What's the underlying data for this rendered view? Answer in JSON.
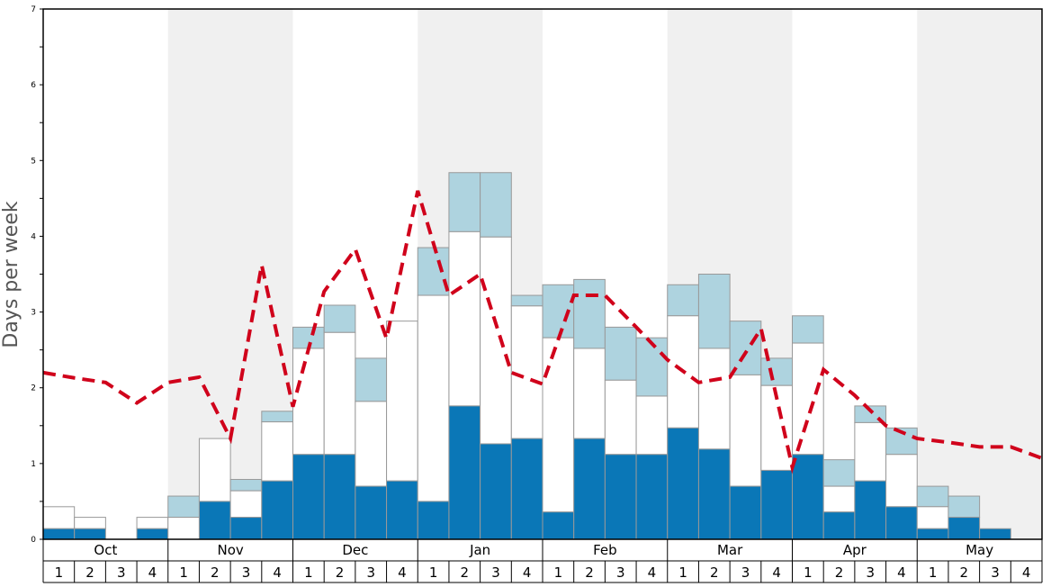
{
  "chart_data": {
    "type": "bar",
    "title": "",
    "ylabel": "Days per week",
    "xlabel": "",
    "ylim": [
      0,
      7
    ],
    "yticks": [
      "0",
      "1",
      "2",
      "3",
      "4",
      "5",
      "6",
      "7"
    ],
    "months": [
      "Oct",
      "Nov",
      "Dec",
      "Jan",
      "Feb",
      "Mar",
      "Apr",
      "May"
    ],
    "weeks_per_month": [
      "1",
      "2",
      "3",
      "4"
    ],
    "colors": {
      "dark": "#0a77b7",
      "middle": "#ffffff",
      "light": "#aed3df",
      "line": "#d0021b",
      "shade": "#f0f0f0"
    },
    "stack_tops": {
      "dark": [
        0.14,
        0.14,
        0,
        0.14,
        0,
        0.5,
        0.29,
        0.77,
        1.12,
        1.12,
        0.7,
        0.77,
        0.5,
        1.76,
        1.26,
        1.33,
        0.36,
        1.33,
        1.12,
        1.12,
        1.47,
        1.19,
        0.7,
        0.91,
        1.12,
        0.36,
        0.77,
        0.43,
        0.14,
        0.29,
        0.14,
        0
      ],
      "middle": [
        0.43,
        0.29,
        0,
        0.29,
        0.29,
        1.33,
        0.64,
        1.55,
        2.52,
        2.73,
        1.82,
        2.88,
        3.22,
        4.06,
        3.99,
        3.08,
        2.66,
        2.52,
        2.1,
        1.89,
        2.95,
        2.52,
        2.17,
        2.03,
        2.59,
        0.7,
        1.54,
        1.12,
        0.43,
        0.29,
        0.14,
        0
      ],
      "light": [
        0.43,
        0.29,
        0,
        0.29,
        0.57,
        1.33,
        0.79,
        1.69,
        2.8,
        3.09,
        2.39,
        2.88,
        3.85,
        4.84,
        4.84,
        3.22,
        3.36,
        3.43,
        2.8,
        2.66,
        3.36,
        3.5,
        2.88,
        2.39,
        2.95,
        1.05,
        1.76,
        1.47,
        0.7,
        0.57,
        0.14,
        0
      ]
    },
    "line": [
      2.2,
      2.13,
      2.07,
      1.8,
      2.07,
      2.14,
      1.33,
      3.62,
      1.75,
      3.27,
      3.83,
      2.65,
      4.6,
      3.22,
      3.5,
      2.2,
      2.05,
      3.22,
      3.22,
      2.8,
      2.37,
      2.07,
      2.14,
      2.78,
      0.95,
      2.24,
      1.9,
      1.5,
      1.33,
      1.28,
      1.22,
      1.22,
      1.07
    ]
  }
}
